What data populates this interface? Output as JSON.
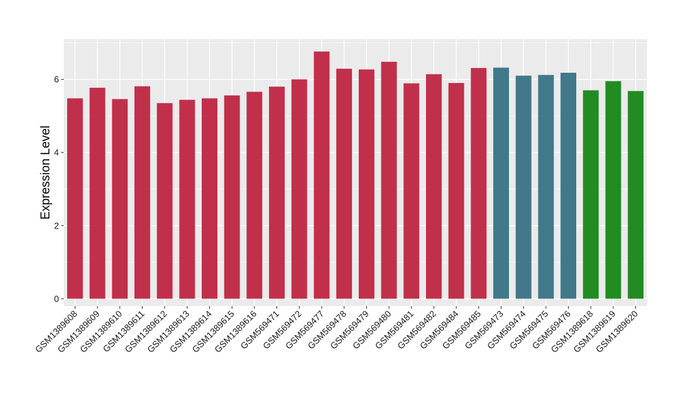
{
  "chart_data": {
    "type": "bar",
    "title": "",
    "xlabel": "",
    "ylabel": "Expression Level",
    "ylim": [
      -0.2,
      7.1
    ],
    "yticks": [
      0,
      2,
      4,
      6
    ],
    "grid": true,
    "panel_background": "#ebebeb",
    "grid_color": "#ffffff",
    "colors": {
      "red": "#c0304a",
      "teal": "#41788a",
      "green": "#228b22"
    },
    "categories": [
      "GSM1389608",
      "GSM1389609",
      "GSM1389610",
      "GSM1389611",
      "GSM1389612",
      "GSM1389613",
      "GSM1389614",
      "GSM1389615",
      "GSM1389616",
      "GSM569471",
      "GSM569472",
      "GSM569477",
      "GSM569478",
      "GSM569479",
      "GSM569480",
      "GSM569481",
      "GSM569482",
      "GSM569484",
      "GSM569485",
      "GSM569473",
      "GSM569474",
      "GSM569475",
      "GSM569476",
      "GSM1389618",
      "GSM1389619",
      "GSM1389620"
    ],
    "values": [
      5.48,
      5.77,
      5.46,
      5.81,
      5.35,
      5.44,
      5.48,
      5.56,
      5.66,
      5.8,
      6.0,
      6.76,
      6.29,
      6.27,
      6.48,
      5.89,
      6.14,
      5.9,
      6.31,
      6.32,
      6.1,
      6.12,
      6.18,
      5.7,
      5.95,
      5.68
    ],
    "bar_colors": [
      "red",
      "red",
      "red",
      "red",
      "red",
      "red",
      "red",
      "red",
      "red",
      "red",
      "red",
      "red",
      "red",
      "red",
      "red",
      "red",
      "red",
      "red",
      "red",
      "teal",
      "teal",
      "teal",
      "teal",
      "green",
      "green",
      "green"
    ]
  }
}
